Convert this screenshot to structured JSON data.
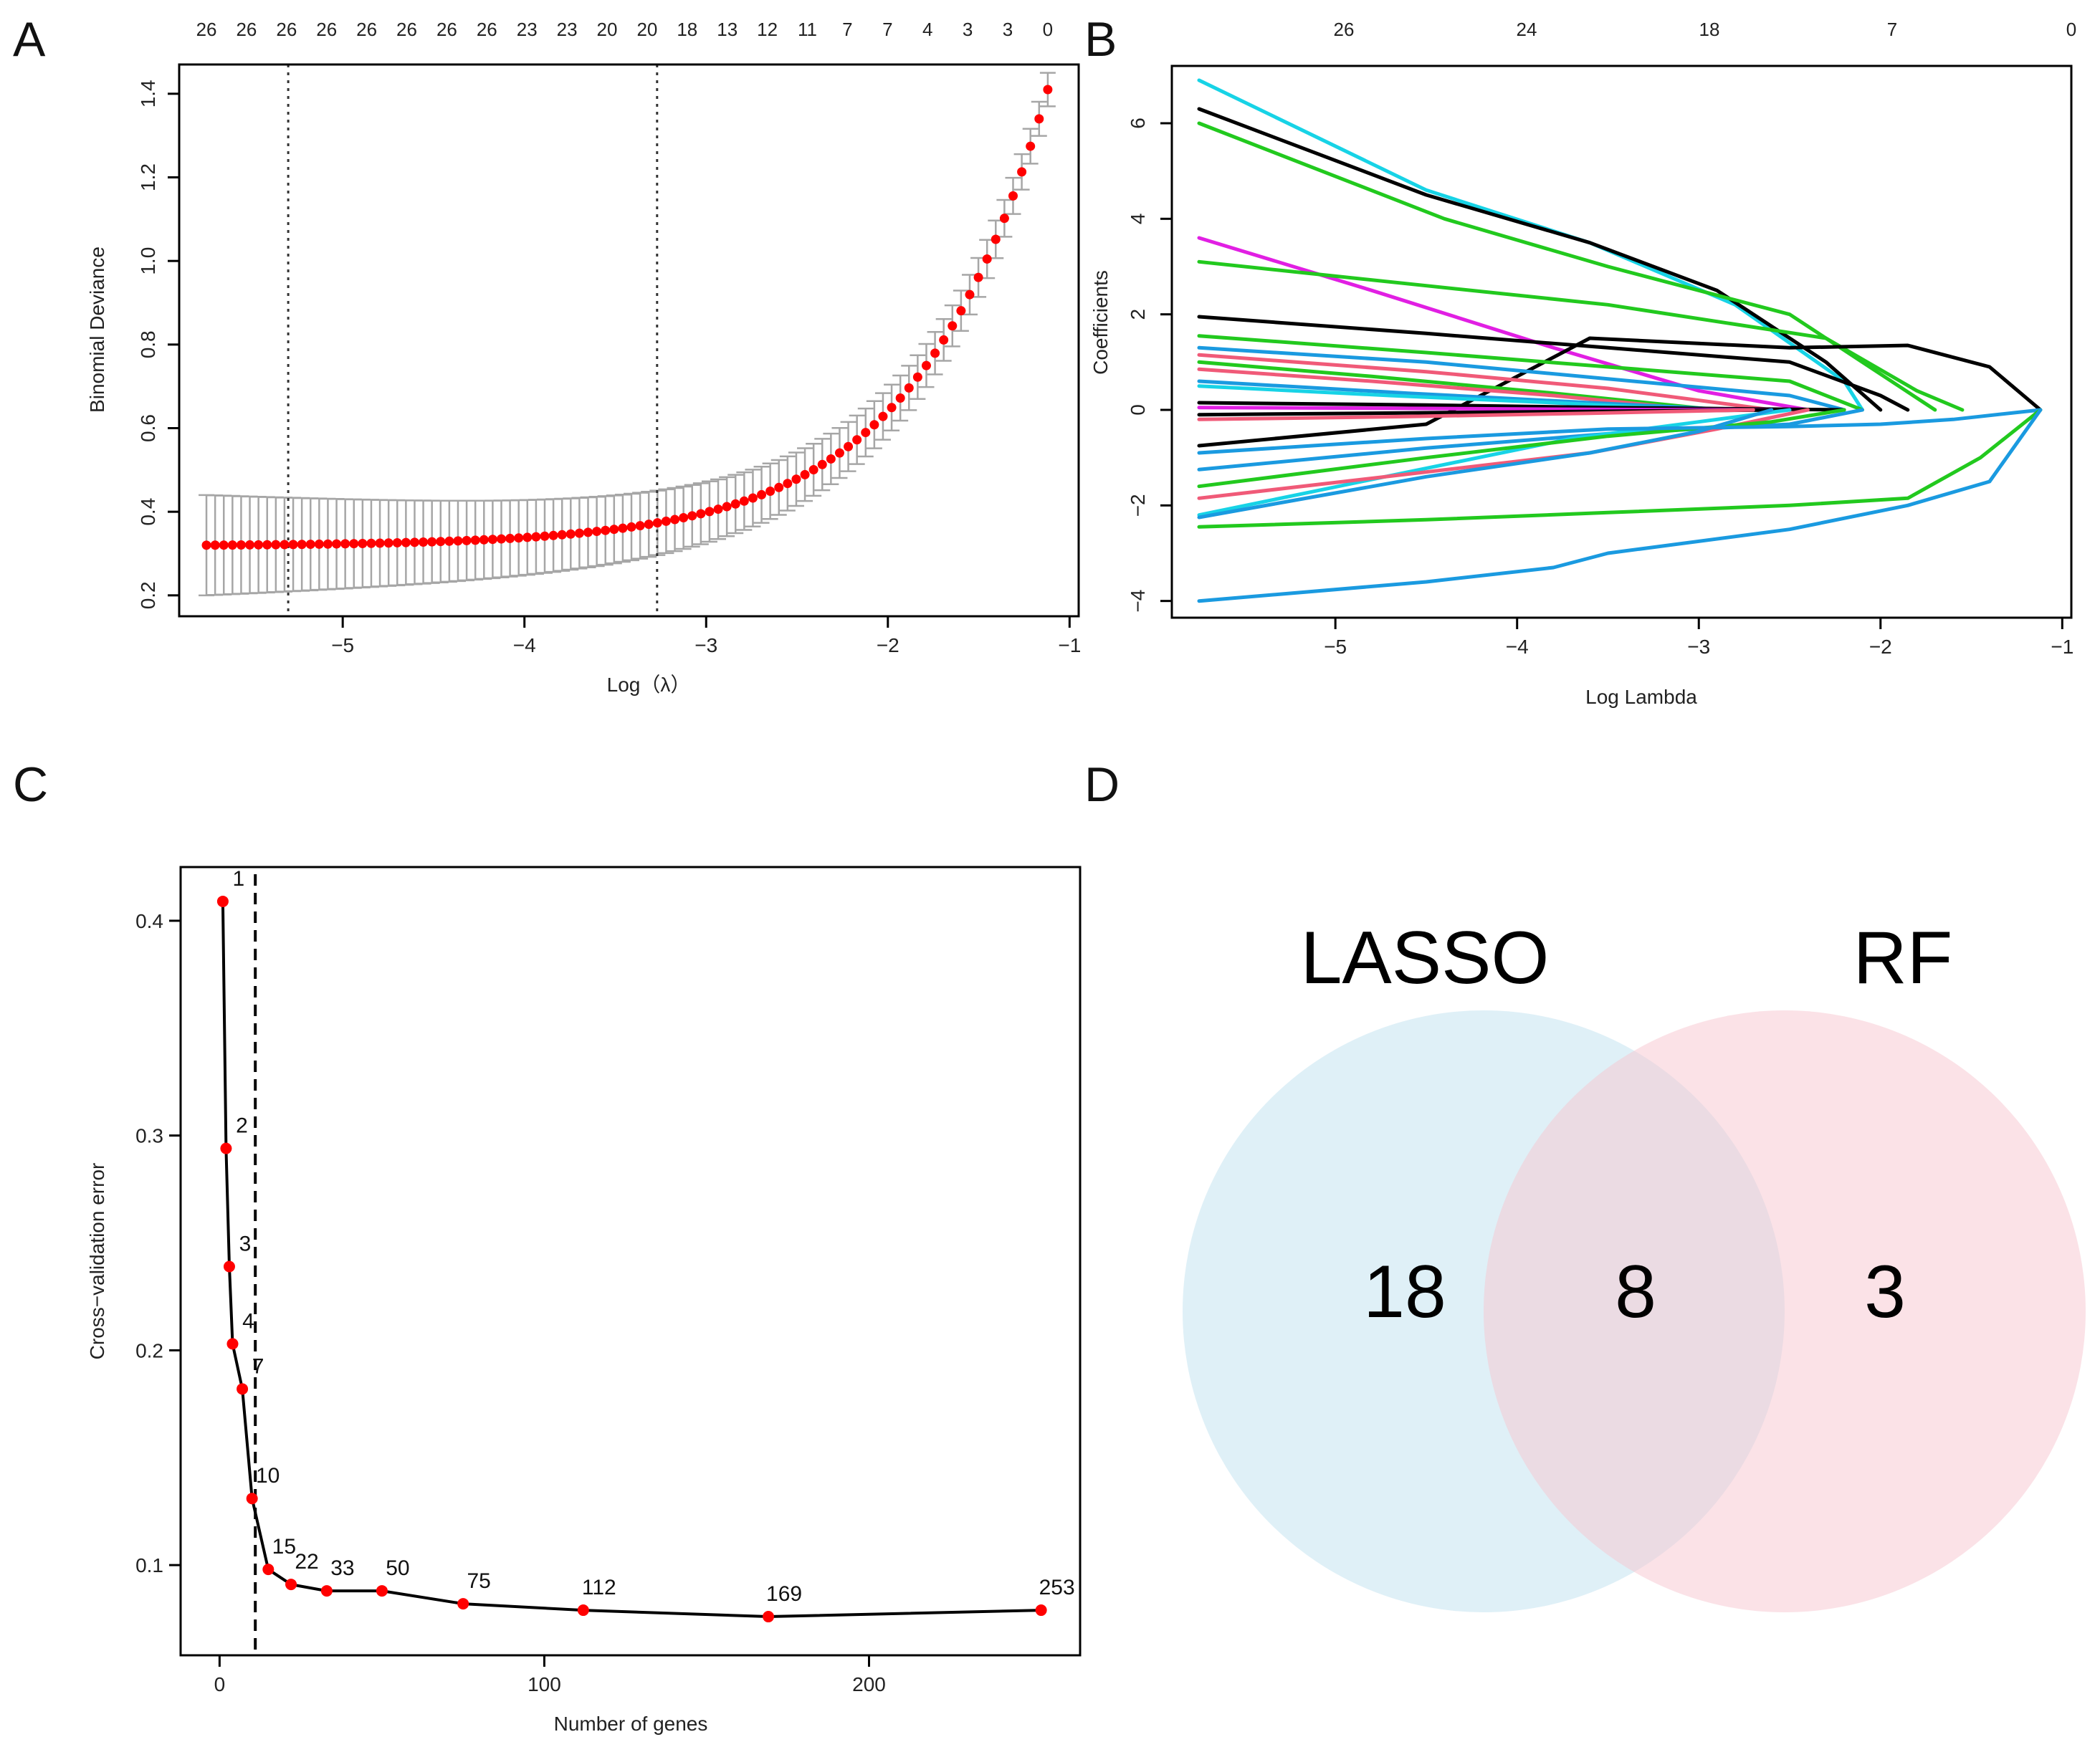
{
  "panels": {
    "A": {
      "letter": "A",
      "xlabel": "Log（λ）",
      "ylabel": "Binomial Deviance",
      "xticks": [
        "−5",
        "−4",
        "−3",
        "−2",
        "−1"
      ],
      "yticks": [
        "0.2",
        "0.4",
        "0.6",
        "0.8",
        "1.0",
        "1.2",
        "1.4"
      ],
      "top_counts": [
        "26",
        "26",
        "26",
        "26",
        "26",
        "26",
        "26",
        "26",
        "23",
        "23",
        "20",
        "20",
        "18",
        "13",
        "12",
        "11",
        "7",
        "7",
        "4",
        "3",
        "3",
        "0"
      ]
    },
    "B": {
      "letter": "B",
      "xlabel": "Log Lambda",
      "ylabel": "Coefficients",
      "xticks": [
        "−5",
        "−4",
        "−3",
        "−2",
        "−1"
      ],
      "yticks": [
        "−4",
        "−2",
        "0",
        "2",
        "4",
        "6"
      ],
      "top_counts": [
        "26",
        "24",
        "18",
        "7",
        "0"
      ]
    },
    "C": {
      "letter": "C",
      "xlabel": "Number of genes",
      "ylabel": "Cross−validation error",
      "xticks": [
        "0",
        "100",
        "200"
      ],
      "yticks": [
        "0.1",
        "0.2",
        "0.3",
        "0.4"
      ]
    },
    "D": {
      "letter": "D",
      "set_left": "LASSO",
      "set_right": "RF",
      "only_left": "18",
      "both": "8",
      "only_right": "3"
    }
  },
  "chart_data": [
    {
      "panel": "A",
      "type": "scatter",
      "title": "",
      "xlabel": "Log（λ）",
      "ylabel": "Binomial Deviance",
      "xlim": [
        -5.9,
        -0.95
      ],
      "ylim": [
        0.15,
        1.47
      ],
      "x_start": -5.75,
      "x_end": -1.12,
      "n_points": 98,
      "min_curve": {
        "x": -5.75,
        "y": 0.32,
        "growth_scale": 0.72,
        "log_amp": 0.102
      },
      "error_band_half_width": 0.12,
      "error_band_end_half_width": 0.04,
      "vlines": [
        -5.3,
        -3.27
      ],
      "color_points": "#ff0000",
      "color_error": "#a6a6a6"
    },
    {
      "panel": "B",
      "type": "line",
      "title": "",
      "xlabel": "Log Lambda",
      "ylabel": "Coefficients",
      "xlim": [
        -5.9,
        -0.95
      ],
      "ylim": [
        -4.35,
        7.2
      ],
      "series": [
        {
          "color": "#17d3e6",
          "x": [
            -5.75,
            -4.5,
            -3.6,
            -2.8,
            -2.2,
            -2.1
          ],
          "y": [
            6.9,
            4.6,
            3.5,
            2.2,
            0.6,
            0.0
          ]
        },
        {
          "color": "#000000",
          "x": [
            -5.75,
            -4.5,
            -3.6,
            -2.9,
            -2.3,
            -2.0
          ],
          "y": [
            6.3,
            4.5,
            3.5,
            2.5,
            1.0,
            0.0
          ]
        },
        {
          "color": "#22c91e",
          "x": [
            -5.75,
            -4.4,
            -3.5,
            -2.5,
            -1.9,
            -1.7
          ],
          "y": [
            6.0,
            4.0,
            3.0,
            2.0,
            0.5,
            0.0
          ]
        },
        {
          "color": "#e11fe3",
          "x": [
            -5.75,
            -4.8,
            -3.8,
            -3.0,
            -2.4
          ],
          "y": [
            3.6,
            2.5,
            1.3,
            0.4,
            0.0
          ]
        },
        {
          "color": "#22c91e",
          "x": [
            -5.75,
            -4.5,
            -3.5,
            -2.3,
            -1.8,
            -1.55
          ],
          "y": [
            3.1,
            2.6,
            2.2,
            1.5,
            0.4,
            0.0
          ]
        },
        {
          "color": "#000000",
          "x": [
            -5.75,
            -4.5,
            -3.5,
            -2.5,
            -2.0,
            -1.85
          ],
          "y": [
            1.95,
            1.6,
            1.3,
            1.0,
            0.3,
            0.0
          ]
        },
        {
          "color": "#000000",
          "x": [
            -5.75,
            -4.5,
            -3.6,
            -2.5,
            -1.85,
            -1.4,
            -1.12
          ],
          "y": [
            -0.75,
            -0.3,
            1.5,
            1.3,
            1.35,
            0.9,
            0.0
          ]
        },
        {
          "color": "#22c91e",
          "x": [
            -5.75,
            -4.5,
            -3.5,
            -2.5,
            -2.1
          ],
          "y": [
            1.55,
            1.2,
            0.9,
            0.6,
            0.0
          ]
        },
        {
          "color": "#1a9ae0",
          "x": [
            -5.75,
            -4.5,
            -3.5,
            -2.5,
            -2.2
          ],
          "y": [
            1.3,
            1.0,
            0.65,
            0.3,
            0.0
          ]
        },
        {
          "color": "#f05a78",
          "x": [
            -5.75,
            -4.5,
            -3.5,
            -2.6
          ],
          "y": [
            1.15,
            0.8,
            0.45,
            0.0
          ]
        },
        {
          "color": "#22c91e",
          "x": [
            -5.75,
            -4.8,
            -3.8,
            -2.9
          ],
          "y": [
            1.0,
            0.7,
            0.35,
            0.0
          ]
        },
        {
          "color": "#f05a78",
          "x": [
            -5.75,
            -4.8,
            -3.8,
            -3.0
          ],
          "y": [
            0.85,
            0.6,
            0.3,
            0.0
          ]
        },
        {
          "color": "#1a9ae0",
          "x": [
            -5.75,
            -4.6,
            -3.6,
            -2.8
          ],
          "y": [
            0.6,
            0.35,
            0.15,
            0.0
          ]
        },
        {
          "color": "#17d3e6",
          "x": [
            -5.75,
            -4.7,
            -3.8,
            -3.0
          ],
          "y": [
            0.5,
            0.3,
            0.15,
            0.0
          ]
        },
        {
          "color": "#000000",
          "x": [
            -5.75,
            -4.5,
            -3.5,
            -2.2
          ],
          "y": [
            0.15,
            0.1,
            0.05,
            0.0
          ]
        },
        {
          "color": "#e11fe3",
          "x": [
            -5.75,
            -4.5,
            -3.6,
            -2.6
          ],
          "y": [
            0.05,
            0.03,
            0.01,
            0.0
          ]
        },
        {
          "color": "#000000",
          "x": [
            -5.75,
            -4.5,
            -3.5,
            -2.5
          ],
          "y": [
            -0.1,
            -0.06,
            -0.03,
            0.0
          ]
        },
        {
          "color": "#f05a78",
          "x": [
            -5.75,
            -4.6,
            -3.6,
            -2.7
          ],
          "y": [
            -0.2,
            -0.14,
            -0.07,
            0.0
          ]
        },
        {
          "color": "#1a9ae0",
          "x": [
            -5.75,
            -4.5,
            -3.5,
            -2.5,
            -2.1
          ],
          "y": [
            -1.25,
            -0.8,
            -0.5,
            -0.3,
            0.0
          ]
        },
        {
          "color": "#17d3e6",
          "x": [
            -5.75,
            -4.6,
            -3.7,
            -3.0,
            -2.5
          ],
          "y": [
            -2.2,
            -1.3,
            -0.6,
            -0.25,
            0.0
          ]
        },
        {
          "color": "#f05a78",
          "x": [
            -5.75,
            -4.5,
            -3.6,
            -2.9,
            -2.4
          ],
          "y": [
            -1.85,
            -1.3,
            -0.9,
            -0.4,
            0.0
          ]
        },
        {
          "color": "#22c91e",
          "x": [
            -5.75,
            -4.5,
            -3.5,
            -2.6,
            -2.2
          ],
          "y": [
            -1.6,
            -1.0,
            -0.55,
            -0.25,
            0.0
          ]
        },
        {
          "color": "#1a9ae0",
          "x": [
            -5.75,
            -4.5,
            -3.6,
            -3.0,
            -2.6
          ],
          "y": [
            -2.25,
            -1.4,
            -0.9,
            -0.45,
            0.0
          ]
        },
        {
          "color": "#1a9ae0",
          "x": [
            -5.75,
            -4.5,
            -3.5,
            -2.5,
            -2.0,
            -1.6,
            -1.12
          ],
          "y": [
            -0.9,
            -0.6,
            -0.4,
            -0.35,
            -0.3,
            -0.2,
            0.0
          ]
        },
        {
          "color": "#22c91e",
          "x": [
            -5.75,
            -4.5,
            -3.5,
            -2.5,
            -1.85,
            -1.45,
            -1.12
          ],
          "y": [
            -2.45,
            -2.3,
            -2.15,
            -2.0,
            -1.85,
            -1.0,
            0.0
          ]
        },
        {
          "color": "#1a9ae0",
          "x": [
            -5.75,
            -4.5,
            -3.8,
            -3.5,
            -2.5,
            -1.85,
            -1.4,
            -1.12
          ],
          "y": [
            -4.0,
            -3.6,
            -3.3,
            -3.0,
            -2.5,
            -2.0,
            -1.5,
            0.0
          ]
        }
      ]
    },
    {
      "panel": "C",
      "type": "line",
      "title": "",
      "xlabel": "Number of genes",
      "ylabel": "Cross−validation error",
      "xlim": [
        -12,
        265
      ],
      "ylim": [
        0.058,
        0.425
      ],
      "x": [
        1,
        2,
        3,
        4,
        7,
        10,
        15,
        22,
        33,
        50,
        75,
        112,
        169,
        253
      ],
      "y": [
        0.409,
        0.294,
        0.239,
        0.203,
        0.182,
        0.131,
        0.098,
        0.091,
        0.088,
        0.088,
        0.082,
        0.079,
        0.076,
        0.079
      ],
      "labels": [
        "1",
        "2",
        "3",
        "4",
        "7",
        "10",
        "15",
        "22",
        "33",
        "50",
        "75",
        "112",
        "169",
        "253"
      ],
      "vline": 11
    },
    {
      "panel": "D",
      "type": "venn",
      "sets": [
        "LASSO",
        "RF"
      ],
      "counts": {
        "LASSO_only": 18,
        "intersection": 8,
        "RF_only": 3
      }
    }
  ]
}
